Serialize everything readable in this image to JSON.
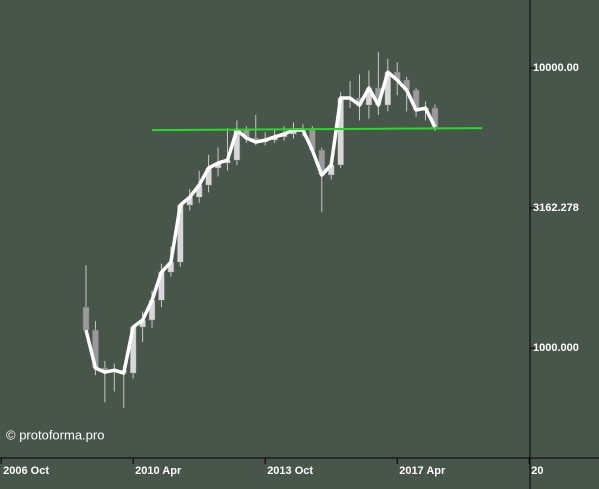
{
  "chart_data": {
    "type": "candlestick",
    "watermark": "© protoforma.pro",
    "log_scale": true,
    "background": "#48554a",
    "xlim": [
      2006.72,
      2020.77
    ],
    "xticks": [
      {
        "value": 2006.75,
        "label": "2006 Oct"
      },
      {
        "value": 2010.25,
        "label": "2010 Apr"
      },
      {
        "value": 2013.75,
        "label": "2013 Oct"
      },
      {
        "value": 2017.25,
        "label": "2017 Apr"
      },
      {
        "value": 2020.75,
        "label": "20"
      }
    ],
    "ylim": [
      405,
      17500
    ],
    "yticks": [
      {
        "value": 1000,
        "label": "1000.000"
      },
      3162.278,
      {
        "value": 10000,
        "label": "10000.00"
      }
    ],
    "x": [
      2009.0,
      2009.25,
      2009.5,
      2009.75,
      2010.0,
      2010.25,
      2010.5,
      2010.75,
      2011.0,
      2011.25,
      2011.5,
      2011.75,
      2012.0,
      2012.25,
      2012.5,
      2012.75,
      2013.0,
      2013.25,
      2013.5,
      2013.75,
      2014.0,
      2014.25,
      2014.5,
      2014.75,
      2015.0,
      2015.25,
      2015.5,
      2015.75,
      2016.0,
      2016.25,
      2016.5,
      2016.75,
      2017.0,
      2017.25,
      2017.5,
      2017.75,
      2018.0,
      2018.25
    ],
    "open": [
      1400,
      1159,
      849,
      820,
      834,
      814,
      1189,
      1259,
      1482,
      1867,
      2027,
      3240,
      3459,
      3820,
      4394,
      4578,
      4690,
      6010,
      5623,
      5443,
      5530,
      5674,
      5810,
      6010,
      6010,
      5095,
      4150,
      4506,
      7816,
      7816,
      7378,
      8483,
      7378,
      9676,
      9060,
      8337,
      7080,
      7197
    ],
    "high": [
      1980,
      1250,
      900,
      880,
      870,
      1200,
      1350,
      1600,
      2000,
      2300,
      3300,
      3700,
      4300,
      4900,
      5200,
      6100,
      6500,
      6200,
      6800,
      5900,
      6000,
      6200,
      6400,
      6300,
      6200,
      5200,
      4700,
      8200,
      9000,
      9500,
      9800,
      11400,
      10800,
      10500,
      9300,
      8500,
      7600,
      7400
    ],
    "low": [
      1150,
      800,
      640,
      700,
      611,
      780,
      1050,
      1180,
      1400,
      1800,
      1950,
      3100,
      3300,
      3600,
      4100,
      4300,
      4500,
      5400,
      5300,
      5300,
      5400,
      5500,
      5600,
      5700,
      5000,
      3063,
      4000,
      4400,
      7200,
      6500,
      6600,
      6800,
      7000,
      8000,
      7000,
      6700,
      6500,
      5950
    ],
    "close": [
      1159,
      849,
      820,
      834,
      814,
      1189,
      1259,
      1482,
      1867,
      2027,
      3240,
      3459,
      3820,
      4394,
      4578,
      4690,
      6010,
      5623,
      5443,
      5530,
      5674,
      5810,
      6010,
      6010,
      5095,
      4150,
      4506,
      7816,
      7816,
      7378,
      8483,
      7378,
      9676,
      9060,
      8337,
      7080,
      7197,
      6155
    ],
    "up_color": "#d8d8d8",
    "down_color": "#9a9a9a",
    "line_color": "#ffffff",
    "trendline": {
      "color": "#22dd22",
      "x": [
        2010.75,
        2019.5
      ],
      "values": [
        6000,
        6100
      ]
    }
  }
}
